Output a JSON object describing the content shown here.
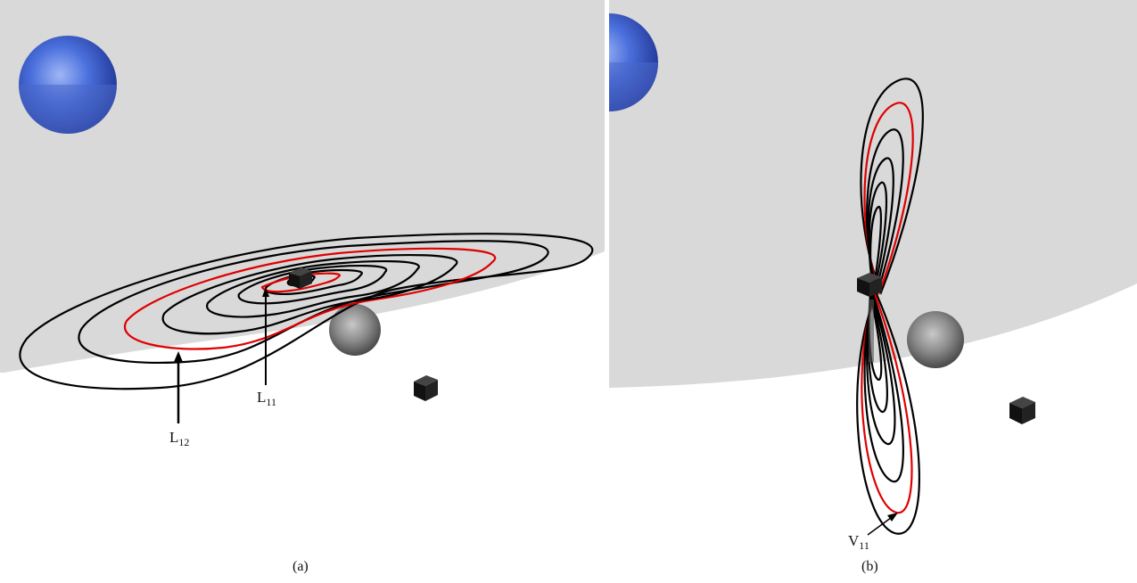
{
  "panels": [
    {
      "caption": "(a)",
      "labels": [
        {
          "main": "L",
          "sub": "12"
        },
        {
          "main": "L",
          "sub": "11"
        }
      ]
    },
    {
      "caption": "(b)",
      "labels": [
        {
          "main": "V",
          "sub": "11"
        }
      ]
    }
  ],
  "colors": {
    "plane": "#d9d9d9",
    "orbit": "#000000",
    "highlight_orbit": "#e00000",
    "large_sphere": "#3355cc",
    "small_sphere": "#808080",
    "cube": "#111111"
  }
}
